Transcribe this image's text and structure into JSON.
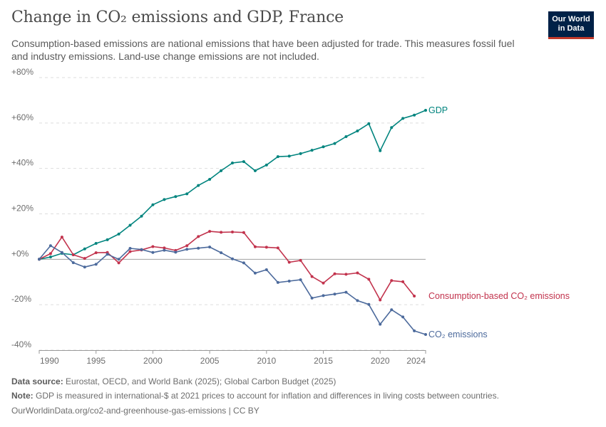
{
  "header": {
    "title": "Change in CO₂ emissions and GDP, France",
    "subtitle": "Consumption-based emissions are national emissions that have been adjusted for trade. This measures fossil fuel and industry emissions. Land-use change emissions are not included.",
    "logo": "Our World in Data"
  },
  "chart_data": {
    "type": "line",
    "x_ticks": [
      "1990",
      "1995",
      "2000",
      "2005",
      "2010",
      "2015",
      "2020",
      "2024"
    ],
    "y_ticks": [
      "+80%",
      "+60%",
      "+40%",
      "+20%",
      "+0%",
      "-20%",
      "-40%"
    ],
    "ylim": [
      -40,
      80
    ],
    "xlim": [
      1990,
      2024
    ],
    "grid": true,
    "legend": "inline-right",
    "series": [
      {
        "name": "GDP",
        "color": "#00847e",
        "x": [
          1990,
          1991,
          1992,
          1993,
          1994,
          1995,
          1996,
          1997,
          1998,
          1999,
          2000,
          2001,
          2002,
          2003,
          2004,
          2005,
          2006,
          2007,
          2008,
          2009,
          2010,
          2011,
          2012,
          2013,
          2014,
          2015,
          2016,
          2017,
          2018,
          2019,
          2020,
          2021,
          2022,
          2023,
          2024
        ],
        "values": [
          0,
          1.0,
          2.6,
          2.0,
          4.6,
          7.0,
          8.6,
          11.1,
          15.0,
          19.0,
          24.0,
          26.3,
          27.6,
          28.8,
          32.5,
          35.2,
          39.0,
          42.4,
          43.0,
          39.0,
          41.5,
          45.2,
          45.4,
          46.5,
          48.0,
          49.5,
          51.0,
          54.0,
          56.5,
          59.7,
          47.8,
          58.0,
          62.0,
          63.5,
          65.6
        ]
      },
      {
        "name": "Consumption-based CO₂ emissions",
        "color": "#c2334d",
        "x": [
          1990,
          1991,
          1992,
          1993,
          1994,
          1995,
          1996,
          1997,
          1998,
          1999,
          2000,
          2001,
          2002,
          2003,
          2004,
          2005,
          2006,
          2007,
          2008,
          2009,
          2010,
          2011,
          2012,
          2013,
          2014,
          2015,
          2016,
          2017,
          2018,
          2019,
          2020,
          2021,
          2022,
          2023
        ],
        "values": [
          0,
          2.5,
          9.8,
          2.0,
          0.4,
          2.9,
          3.0,
          -1.6,
          3.4,
          4.1,
          5.6,
          5.0,
          3.9,
          6.0,
          10.0,
          12.3,
          11.9,
          12.0,
          11.8,
          5.5,
          5.3,
          5.0,
          -1.3,
          -0.5,
          -7.6,
          -10.5,
          -6.4,
          -6.6,
          -6.0,
          -8.8,
          -17.9,
          -9.4,
          -9.9,
          -16.2
        ]
      },
      {
        "name": "CO₂ emissions",
        "color": "#4c6a9c",
        "x": [
          1990,
          1991,
          1992,
          1993,
          1994,
          1995,
          1996,
          1997,
          1998,
          1999,
          2000,
          2001,
          2002,
          2003,
          2004,
          2005,
          2006,
          2007,
          2008,
          2009,
          2010,
          2011,
          2012,
          2013,
          2014,
          2015,
          2016,
          2017,
          2018,
          2019,
          2020,
          2021,
          2022,
          2023,
          2024
        ],
        "values": [
          0,
          6.0,
          3.0,
          -1.5,
          -3.4,
          -2.2,
          2.2,
          0,
          4.8,
          4.3,
          3.0,
          4.0,
          3.1,
          4.4,
          4.9,
          5.4,
          2.9,
          0.2,
          -1.6,
          -6.1,
          -4.6,
          -10.2,
          -9.6,
          -9.0,
          -17.1,
          -16.0,
          -15.3,
          -14.5,
          -18.2,
          -19.9,
          -28.6,
          -22.2,
          -25.4,
          -31.5,
          -33.1
        ]
      }
    ]
  },
  "footer": {
    "source_label": "Data source:",
    "source_text": "Eurostat, OECD, and World Bank (2025); Global Carbon Budget (2025)",
    "note_label": "Note:",
    "note_text": "GDP is measured in international-$ at 2021 prices to account for inflation and differences in living costs between countries.",
    "url": "OurWorldinData.org/co2-and-greenhouse-gas-emissions | CC BY"
  }
}
